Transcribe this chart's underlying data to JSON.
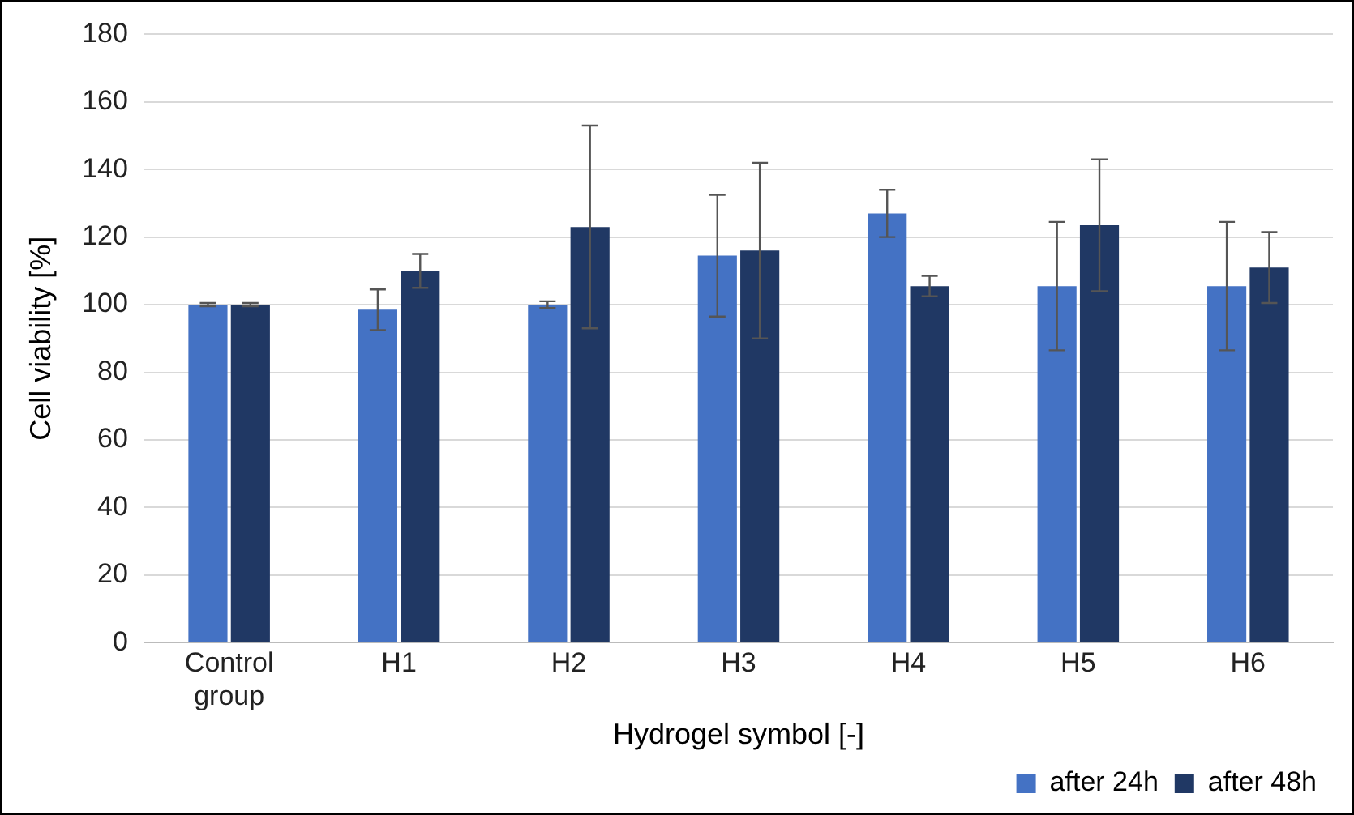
{
  "chart_data": {
    "type": "bar",
    "xlabel": "Hydrogel symbol [-]",
    "ylabel": "Cell viability [%]",
    "categories": [
      "Control group",
      "H1",
      "H2",
      "H3",
      "H4",
      "H5",
      "H6"
    ],
    "series": [
      {
        "name": "after 24h",
        "color": "#4472c4",
        "values": [
          100,
          98.5,
          100,
          114.5,
          127,
          105.5,
          105.5
        ],
        "errors": [
          0.5,
          6,
          1,
          18,
          7,
          19,
          19
        ]
      },
      {
        "name": "after 48h",
        "color": "#203864",
        "values": [
          100,
          110,
          123,
          116,
          105.5,
          123.5,
          111
        ],
        "errors": [
          0.5,
          5,
          30,
          26,
          3,
          19.5,
          10.5
        ]
      }
    ],
    "ylim": [
      0,
      180
    ],
    "yticks": [
      0,
      20,
      40,
      60,
      80,
      100,
      120,
      140,
      160,
      180
    ],
    "grid": "y",
    "legend": "bottom right"
  }
}
